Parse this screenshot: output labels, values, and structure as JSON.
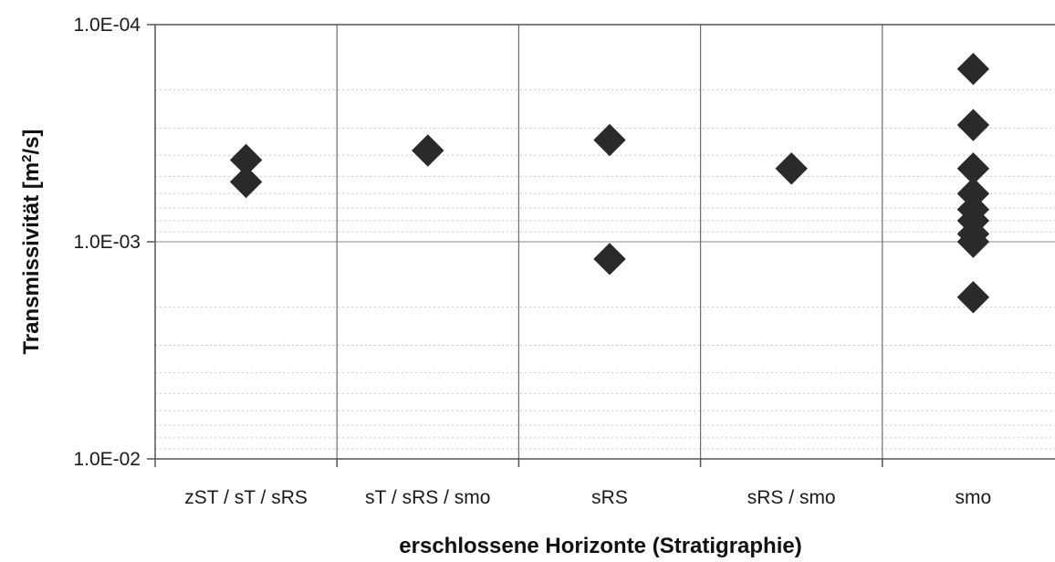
{
  "chart_data": {
    "type": "scatter",
    "title": "",
    "xlabel": "erschlossene Horizonte (Stratigraphie)",
    "ylabel": {
      "prefix": "Transmissivität [m",
      "superscript": "2",
      "suffix": "/s]"
    },
    "y_scale": "log",
    "y_axis_reversed": true,
    "ylim": [
      0.0001,
      0.01
    ],
    "y_ticks": [
      {
        "value": 0.0001,
        "label": "1.0E-04"
      },
      {
        "value": 0.001,
        "label": "1.0E-03"
      },
      {
        "value": 0.01,
        "label": "1.0E-02"
      }
    ],
    "categories": [
      "zST / sT / sRS",
      "sT / sRS / smo",
      "sRS",
      "sRS / smo",
      "smo"
    ],
    "series": [
      {
        "marker": "diamond",
        "color": "#2a2a2a",
        "points": [
          {
            "category": "zST / sT / sRS",
            "y": 0.00042
          },
          {
            "category": "zST / sT / sRS",
            "y": 0.00053
          },
          {
            "category": "sT / sRS / smo",
            "y": 0.00038
          },
          {
            "category": "sRS",
            "y": 0.00034
          },
          {
            "category": "sRS",
            "y": 0.0012
          },
          {
            "category": "sRS / smo",
            "y": 0.00046
          },
          {
            "category": "smo",
            "y": 0.00016
          },
          {
            "category": "smo",
            "y": 0.00029
          },
          {
            "category": "smo",
            "y": 0.00046
          },
          {
            "category": "smo",
            "y": 0.0006
          },
          {
            "category": "smo",
            "y": 0.00071
          },
          {
            "category": "smo",
            "y": 0.0008
          },
          {
            "category": "smo",
            "y": 0.00092
          },
          {
            "category": "smo",
            "y": 0.001
          },
          {
            "category": "smo",
            "y": 0.0018
          }
        ]
      }
    ],
    "grid": {
      "minor_horizontal": true,
      "category_separators": true
    },
    "colors": {
      "frame": "#555555",
      "grid": "#c8c8c8",
      "marker": "#2a2a2a"
    }
  }
}
